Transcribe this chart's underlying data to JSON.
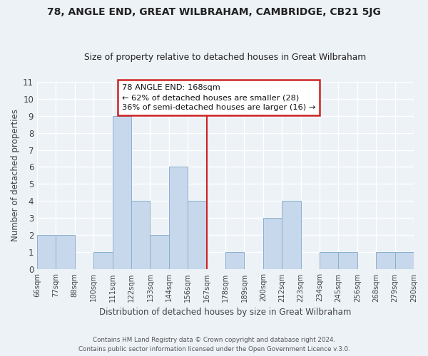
{
  "title": "78, ANGLE END, GREAT WILBRAHAM, CAMBRIDGE, CB21 5JG",
  "subtitle": "Size of property relative to detached houses in Great Wilbraham",
  "xlabel": "Distribution of detached houses by size in Great Wilbraham",
  "ylabel": "Number of detached properties",
  "footer_line1": "Contains HM Land Registry data © Crown copyright and database right 2024.",
  "footer_line2": "Contains public sector information licensed under the Open Government Licence v.3.0.",
  "bar_labels": [
    "66sqm",
    "77sqm",
    "88sqm",
    "100sqm",
    "111sqm",
    "122sqm",
    "133sqm",
    "144sqm",
    "156sqm",
    "167sqm",
    "178sqm",
    "189sqm",
    "200sqm",
    "212sqm",
    "223sqm",
    "234sqm",
    "245sqm",
    "256sqm",
    "268sqm",
    "279sqm",
    "290sqm"
  ],
  "bar_values": [
    2,
    2,
    0,
    1,
    9,
    4,
    2,
    6,
    4,
    0,
    1,
    0,
    3,
    4,
    0,
    1,
    1,
    0,
    1,
    1
  ],
  "bar_color": "#c8d8ec",
  "bar_edge_color": "#8ab0cc",
  "ylim_max": 11,
  "yticks": [
    0,
    1,
    2,
    3,
    4,
    5,
    6,
    7,
    8,
    9,
    10,
    11
  ],
  "annotation_title": "78 ANGLE END: 168sqm",
  "annotation_line1": "← 62% of detached houses are smaller (28)",
  "annotation_line2": "36% of semi-detached houses are larger (16) →",
  "annotation_box_color": "#ffffff",
  "annotation_box_edge": "#cc2222",
  "vline_index": 9,
  "background_color": "#edf2f7",
  "grid_color": "#ffffff",
  "title_color": "#222222",
  "axis_color": "#444444"
}
